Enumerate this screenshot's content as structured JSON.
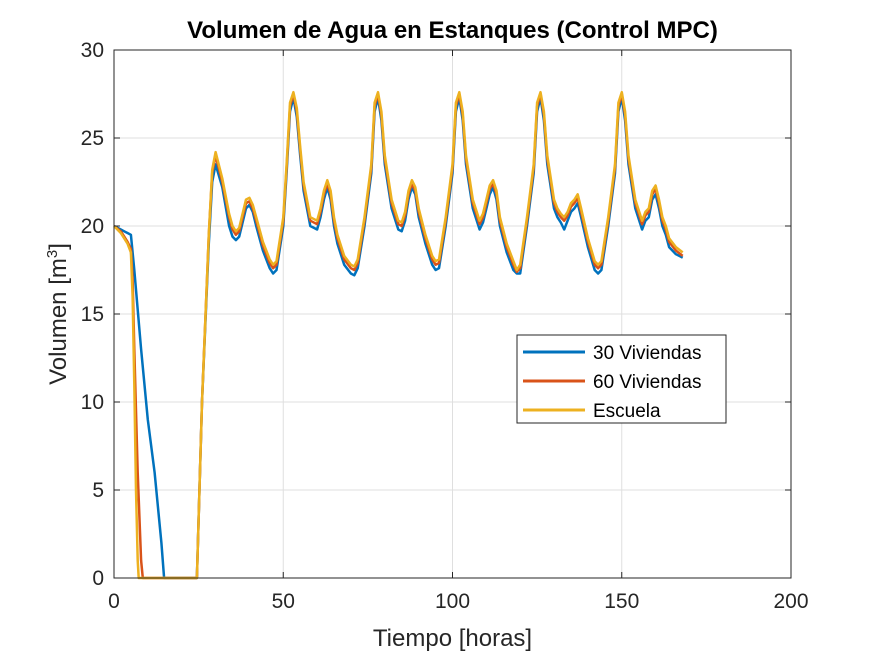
{
  "chart_data": {
    "type": "line",
    "title": "Volumen de Agua en Estanques (Control MPC)",
    "xlabel": "Tiempo [horas]",
    "ylabel_main": "Volumen [m",
    "ylabel_sup": "3",
    "ylabel_end": "]",
    "xlim": [
      0,
      200
    ],
    "ylim": [
      0,
      30
    ],
    "xticks": [
      0,
      50,
      100,
      150,
      200
    ],
    "yticks": [
      0,
      5,
      10,
      15,
      20,
      25,
      30
    ],
    "grid": true,
    "legend_position": "center-right",
    "series": [
      {
        "name": "30 Viviendas",
        "color": "#0072BD",
        "x": [
          0,
          2,
          3,
          4,
          5,
          6,
          8,
          10,
          12,
          14,
          14.8,
          24.5,
          26,
          28,
          29,
          30,
          32,
          34,
          35,
          36,
          37,
          38,
          39,
          40,
          41,
          42,
          44,
          46,
          47,
          48,
          50,
          51,
          52,
          53,
          54,
          55,
          56,
          58,
          60,
          61,
          62,
          63,
          64,
          65,
          66,
          68,
          70,
          71,
          72,
          74,
          76,
          77,
          78,
          79,
          80,
          82,
          84,
          85,
          86,
          87,
          88,
          89,
          90,
          92,
          94,
          95,
          96,
          98,
          100,
          101,
          102,
          103,
          104,
          106,
          108,
          109,
          110,
          111,
          112,
          113,
          114,
          116,
          118,
          119,
          120,
          122,
          124,
          125,
          126,
          127,
          128,
          130,
          131,
          132,
          133,
          134,
          135,
          136,
          137,
          138,
          140,
          142,
          143,
          144,
          146,
          148,
          149,
          150,
          151,
          152,
          154,
          156,
          157,
          158,
          159,
          160,
          161,
          162,
          163,
          164,
          166,
          168
        ],
        "values": [
          20,
          19.8,
          19.7,
          19.6,
          19.5,
          17.5,
          13,
          9,
          6,
          2,
          0,
          0,
          10,
          19,
          22.5,
          23.5,
          22.2,
          20,
          19.4,
          19.2,
          19.4,
          20.2,
          21,
          21.2,
          20.8,
          20,
          18.6,
          17.6,
          17.3,
          17.5,
          20,
          23,
          26.5,
          27.3,
          26.2,
          24,
          22,
          20,
          19.8,
          20.5,
          21.5,
          22.2,
          21.5,
          20,
          19,
          17.8,
          17.3,
          17.2,
          17.6,
          20,
          23,
          26.5,
          27.3,
          26,
          23.5,
          21,
          19.8,
          19.7,
          20.3,
          21.5,
          22.2,
          21.8,
          20.5,
          19,
          17.8,
          17.5,
          17.6,
          20,
          23,
          26.5,
          27.3,
          26,
          23.5,
          21,
          19.8,
          20.2,
          21,
          21.8,
          22.2,
          21.5,
          20,
          18.5,
          17.5,
          17.3,
          17.3,
          20,
          23,
          26.5,
          27.3,
          26,
          23.5,
          21,
          20.5,
          20.2,
          19.8,
          20.3,
          20.8,
          21,
          21.3,
          20.5,
          18.8,
          17.5,
          17.3,
          17.5,
          20,
          23,
          26.5,
          27.3,
          26,
          23.5,
          21,
          19.8,
          20.3,
          20.5,
          21.5,
          21.8,
          21,
          20,
          19.5,
          18.8,
          18.4,
          18.2
        ]
      },
      {
        "name": "60 Viviendas",
        "color": "#D95319",
        "x": [
          0,
          2,
          3,
          4,
          5,
          5.5,
          6,
          7,
          8,
          8.5,
          24.5,
          26,
          28,
          29,
          30,
          32,
          34,
          35,
          36,
          37,
          38,
          39,
          40,
          41,
          42,
          44,
          46,
          47,
          48,
          50,
          51,
          52,
          53,
          54,
          55,
          56,
          58,
          60,
          61,
          62,
          63,
          64,
          65,
          66,
          68,
          70,
          71,
          72,
          74,
          76,
          77,
          78,
          79,
          80,
          82,
          84,
          85,
          86,
          87,
          88,
          89,
          90,
          92,
          94,
          95,
          96,
          98,
          100,
          101,
          102,
          103,
          104,
          106,
          108,
          109,
          110,
          111,
          112,
          113,
          114,
          116,
          118,
          119,
          120,
          122,
          124,
          125,
          126,
          127,
          128,
          130,
          131,
          132,
          133,
          134,
          135,
          136,
          137,
          138,
          140,
          142,
          143,
          144,
          146,
          148,
          149,
          150,
          151,
          152,
          154,
          156,
          157,
          158,
          159,
          160,
          161,
          162,
          163,
          164,
          166,
          168
        ],
        "values": [
          20,
          19.7,
          19.4,
          19.1,
          18.7,
          17,
          13,
          6,
          1,
          0,
          0,
          10,
          19.5,
          23,
          24,
          22.5,
          20.5,
          19.8,
          19.5,
          19.7,
          20.5,
          21.3,
          21.4,
          21,
          20.3,
          18.9,
          17.9,
          17.6,
          17.8,
          20.3,
          23.3,
          26.8,
          27.5,
          26.5,
          24.3,
          22.3,
          20.3,
          20.1,
          20.8,
          21.8,
          22.4,
          21.8,
          20.3,
          19.3,
          18.1,
          17.6,
          17.5,
          17.9,
          20.3,
          23.3,
          26.8,
          27.5,
          26.3,
          23.8,
          21.3,
          20.1,
          20,
          20.6,
          21.8,
          22.4,
          22,
          20.8,
          19.3,
          18.1,
          17.8,
          17.9,
          20.3,
          23.3,
          26.8,
          27.5,
          26.3,
          23.8,
          21.3,
          20.1,
          20.5,
          21.3,
          22.1,
          22.4,
          21.8,
          20.3,
          18.8,
          17.8,
          17.4,
          17.6,
          20.3,
          23.3,
          26.8,
          27.5,
          26.3,
          23.8,
          21.3,
          20.8,
          20.5,
          20.3,
          20.6,
          21.1,
          21.3,
          21.6,
          20.8,
          19.1,
          17.8,
          17.6,
          17.8,
          20.3,
          23.3,
          26.8,
          27.5,
          26.3,
          23.8,
          21.3,
          20.1,
          20.6,
          20.8,
          21.8,
          22.1,
          21.3,
          20.3,
          19.8,
          19.1,
          18.6,
          18.3
        ]
      },
      {
        "name": "Escuela",
        "color": "#EDB120",
        "x": [
          0,
          2,
          3,
          4,
          5,
          5.5,
          6,
          6.5,
          7,
          7.3,
          24.5,
          26,
          28,
          29,
          30,
          32,
          34,
          35,
          36,
          37,
          38,
          39,
          40,
          41,
          42,
          44,
          46,
          47,
          48,
          50,
          51,
          52,
          53,
          54,
          55,
          56,
          58,
          60,
          61,
          62,
          63,
          64,
          65,
          66,
          68,
          70,
          71,
          72,
          74,
          76,
          77,
          78,
          79,
          80,
          82,
          84,
          85,
          86,
          87,
          88,
          89,
          90,
          92,
          94,
          95,
          96,
          98,
          100,
          101,
          102,
          103,
          104,
          106,
          108,
          109,
          110,
          111,
          112,
          113,
          114,
          116,
          118,
          119,
          120,
          122,
          124,
          125,
          126,
          127,
          128,
          130,
          131,
          132,
          133,
          134,
          135,
          136,
          137,
          138,
          140,
          142,
          143,
          144,
          146,
          148,
          149,
          150,
          151,
          152,
          154,
          156,
          157,
          158,
          159,
          160,
          161,
          162,
          163,
          164,
          166,
          168
        ],
        "values": [
          20,
          19.6,
          19.3,
          19,
          18.5,
          16,
          11,
          5,
          1,
          0,
          0,
          10,
          19.5,
          23.2,
          24.2,
          22.7,
          20.7,
          20,
          19.7,
          19.9,
          20.7,
          21.5,
          21.6,
          21.2,
          20.5,
          19.1,
          18.1,
          17.8,
          18,
          20.5,
          23.5,
          27,
          27.6,
          26.7,
          24.5,
          22.5,
          20.5,
          20.3,
          21,
          22,
          22.6,
          22,
          20.5,
          19.5,
          18.3,
          17.8,
          17.7,
          18.1,
          20.5,
          23.5,
          27,
          27.6,
          26.5,
          24,
          21.5,
          20.3,
          20.2,
          20.8,
          22,
          22.6,
          22.2,
          21,
          19.5,
          18.3,
          18,
          18.1,
          20.5,
          23.5,
          27,
          27.6,
          26.5,
          24,
          21.5,
          20.3,
          20.7,
          21.5,
          22.3,
          22.6,
          22,
          20.5,
          19,
          18,
          17.5,
          17.8,
          20.5,
          23.5,
          27,
          27.6,
          26.5,
          24,
          21.5,
          21,
          20.7,
          20.5,
          20.8,
          21.3,
          21.5,
          21.8,
          21,
          19.3,
          18,
          17.8,
          18,
          20.5,
          23.5,
          27,
          27.6,
          26.5,
          24,
          21.5,
          20.3,
          20.8,
          21,
          22,
          22.3,
          21.5,
          20.5,
          20,
          19.3,
          18.8,
          18.5
        ]
      }
    ]
  }
}
